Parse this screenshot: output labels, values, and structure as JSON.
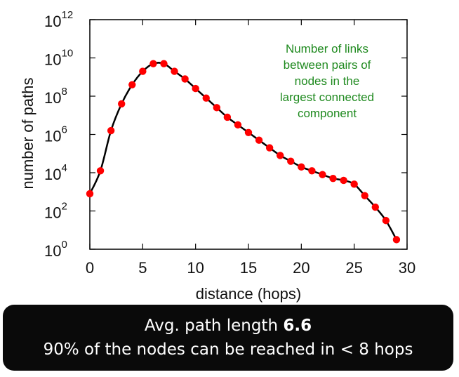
{
  "chart_data": {
    "type": "line",
    "xlabel": "distance (hops)",
    "ylabel": "number of paths",
    "xlim": [
      0,
      30
    ],
    "ylim": [
      0,
      12
    ],
    "y_scale": "log10",
    "x_ticks": [
      0,
      5,
      10,
      15,
      20,
      25,
      30
    ],
    "y_ticks": [
      {
        "base": "10",
        "exp": "0"
      },
      {
        "base": "10",
        "exp": "2"
      },
      {
        "base": "10",
        "exp": "4"
      },
      {
        "base": "10",
        "exp": "6"
      },
      {
        "base": "10",
        "exp": "8"
      },
      {
        "base": "10",
        "exp": "10"
      },
      {
        "base": "10",
        "exp": "12"
      }
    ],
    "grid": false,
    "line_color": "#000000",
    "marker_color": "#ff0000",
    "annotation_lines": [
      "Number of links",
      "between pairs of",
      "nodes in the",
      "largest connected",
      "component"
    ],
    "annotation_color": "#1f8a1f",
    "x": [
      0,
      1,
      2,
      3,
      4,
      5,
      6,
      7,
      8,
      9,
      10,
      11,
      12,
      13,
      14,
      15,
      16,
      17,
      18,
      19,
      20,
      21,
      22,
      23,
      24,
      25,
      26,
      27,
      28,
      29
    ],
    "log10_y": [
      2.9,
      4.1,
      6.2,
      7.6,
      8.6,
      9.3,
      9.7,
      9.7,
      9.3,
      8.9,
      8.4,
      7.9,
      7.4,
      6.9,
      6.5,
      6.1,
      5.7,
      5.3,
      4.9,
      4.6,
      4.3,
      4.1,
      3.9,
      3.7,
      3.6,
      3.4,
      2.8,
      2.2,
      1.5,
      0.5
    ]
  },
  "caption": {
    "line1_prefix": "Avg. path length ",
    "line1_value": "6.6",
    "line2": "90% of the nodes can be reached in < 8 hops"
  }
}
